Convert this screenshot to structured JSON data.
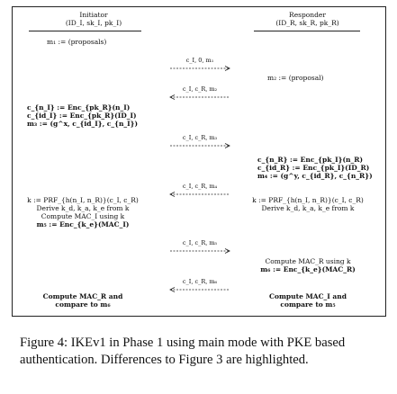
{
  "initiator": {
    "heading": "Initiator",
    "identity": "(ID_I, sk_I, pk_I)",
    "m1": "m₁ := (proposals)",
    "enc_lines": [
      "c_{n_I} := Enc_{pk_R}(n_I)",
      "c_{id_I} := Enc_{pk_R}(ID_I)",
      "m₃ := (g^x, c_{id_I}, c_{n_I})"
    ],
    "derive_lines": [
      "k := PRF_{h(n_I, n_R)}(c_I, c_R)",
      "Derive k_d, k_a, k_e from k",
      "Compute MAC_I using k",
      "m₅ := Enc_{k_e}(MAC_I)"
    ],
    "final_lines": [
      "Compute MAC_R and",
      "compare to m₆"
    ]
  },
  "responder": {
    "heading": "Responder",
    "identity": "(ID_R, sk_R, pk_R)",
    "m2": "m₂ := (proposal)",
    "enc_lines": [
      "c_{n_R} := Enc_{pk_I}(n_R)",
      "c_{id_R} := Enc_{pk_I}(ID_R)",
      "m₄ := (g^y, c_{id_R}, c_{n_R})"
    ],
    "derive_lines": [
      "k := PRF_{h(n_I, n_R)}(c_I, c_R)",
      "Derive k_d, k_a, k_e from k"
    ],
    "mac_lines": [
      "Compute MAC_R using k",
      "m₆ := Enc_{k_e}(MAC_R)"
    ],
    "final_lines": [
      "Compute MAC_I and",
      "compare to m₅"
    ]
  },
  "messages": [
    {
      "label": "c_I, 0, m₁",
      "direction": "right"
    },
    {
      "label": "c_I, c_R, m₂",
      "direction": "left"
    },
    {
      "label": "c_I, c_R, m₃",
      "direction": "right"
    },
    {
      "label": "c_I, c_R, m₄",
      "direction": "left"
    },
    {
      "label": "c_I, c_R, m₅",
      "direction": "right"
    },
    {
      "label": "c_I, c_R, m₆",
      "direction": "left"
    }
  ],
  "caption": "Figure 4: IKEv1 in Phase 1 using main mode with PKE based authentication. Differences to Figure 3 are highlighted."
}
